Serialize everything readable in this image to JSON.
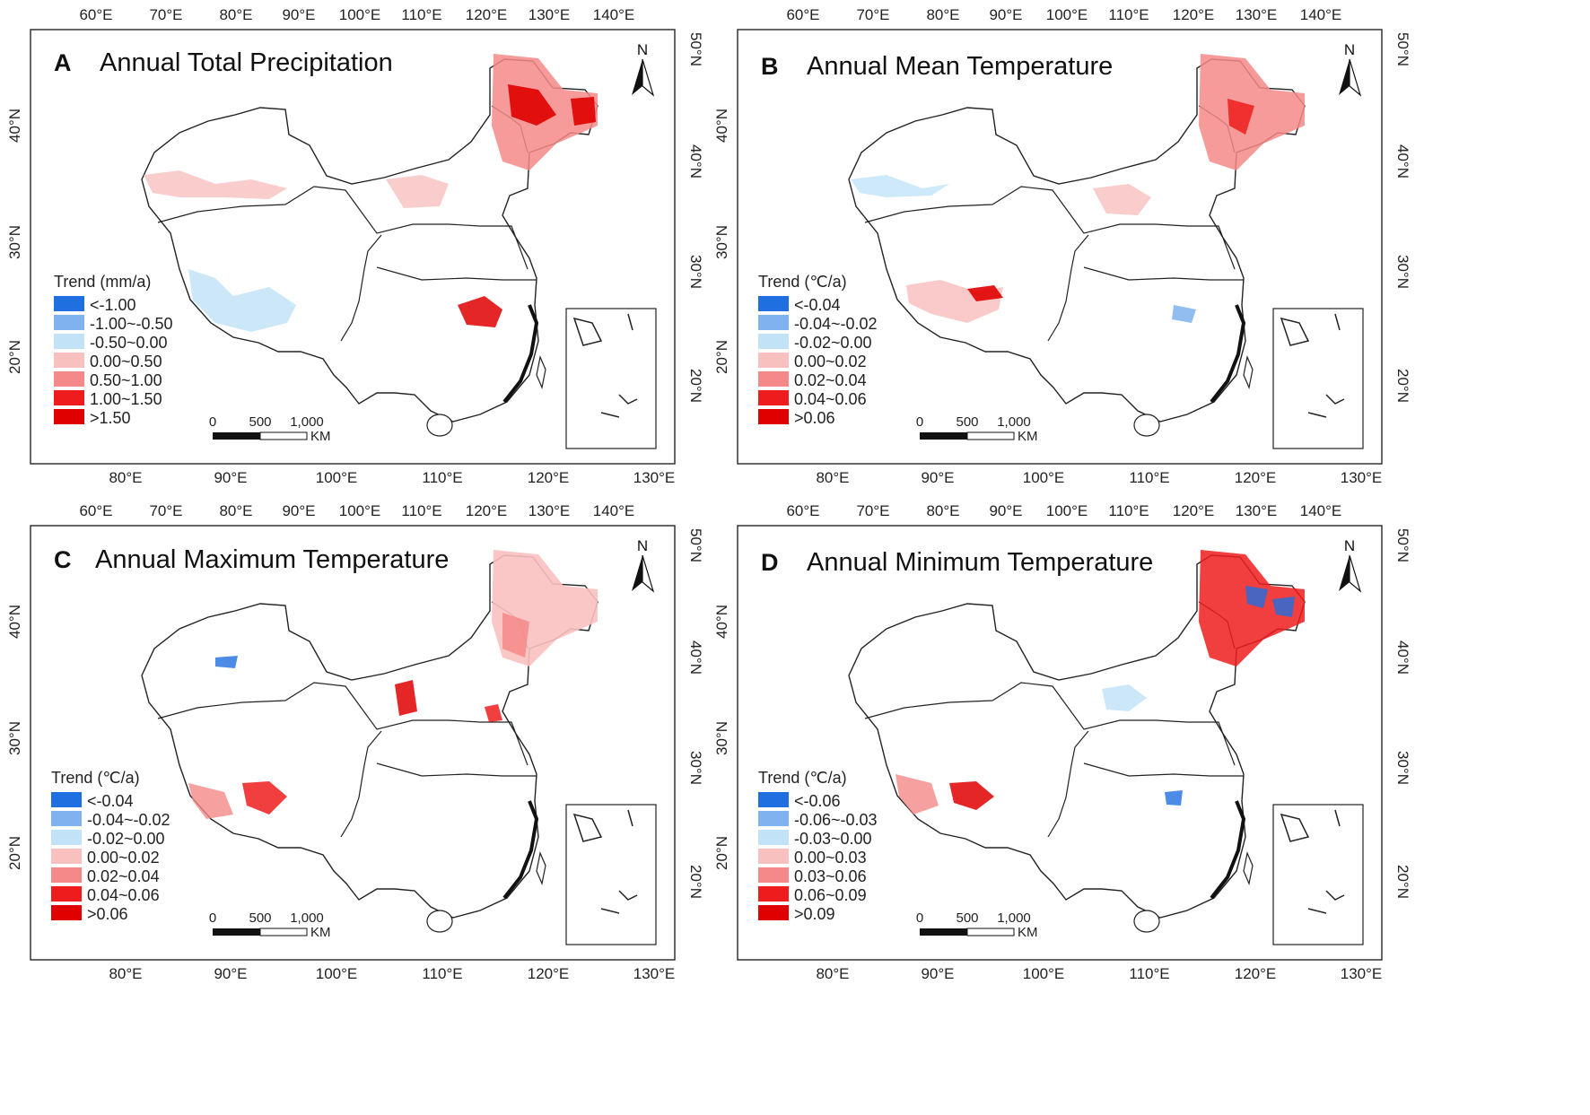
{
  "figure": {
    "top_lon_ticks": [
      "60°E",
      "70°E",
      "80°E",
      "90°E",
      "100°E",
      "110°E",
      "120°E",
      "130°E",
      "140°E"
    ],
    "bottom_lon_ticks": [
      "80°E",
      "90°E",
      "100°E",
      "110°E",
      "120°E",
      "130°E"
    ],
    "left_lat_ticks": [
      "40°N",
      "30°N",
      "20°N"
    ],
    "right_lat_ticks": [
      "50°N",
      "40°N",
      "30°N",
      "20°N"
    ],
    "north_label": "N",
    "scalebar": {
      "labels": [
        "0",
        "500",
        "1,000"
      ],
      "unit": "KM"
    }
  },
  "colors": {
    "class1": "#1f6fe0",
    "class2": "#7fb2ee",
    "class3": "#c2e3f7",
    "class4": "#f9c0c0",
    "class5": "#f58888",
    "class6": "#ee1c1c",
    "class7": "#e00000",
    "boundary": "#222222",
    "frame": "#333333"
  },
  "panels": [
    {
      "letter": "A",
      "title": "Annual Total Precipitation",
      "legend_title": "Trend (mm/a)",
      "legend_items": [
        "<-1.00",
        "-1.00~-0.50",
        "-0.50~0.00",
        "0.00~0.50",
        "0.50~1.00",
        "1.00~1.50",
        ">1.50"
      ]
    },
    {
      "letter": "B",
      "title": "Annual Mean Temperature",
      "legend_title": "Trend (℃/a)",
      "legend_items": [
        "<-0.04",
        "-0.04~-0.02",
        "-0.02~0.00",
        "0.00~0.02",
        "0.02~0.04",
        "0.04~0.06",
        ">0.06"
      ]
    },
    {
      "letter": "C",
      "title": "Annual Maximum Temperature",
      "legend_title": "Trend (℃/a)",
      "legend_items": [
        "<-0.04",
        "-0.04~-0.02",
        "-0.02~0.00",
        "0.00~0.02",
        "0.02~0.04",
        "0.04~0.06",
        ">0.06"
      ]
    },
    {
      "letter": "D",
      "title": "Annual Minimum Temperature",
      "legend_title": "Trend (℃/a)",
      "legend_items": [
        "<-0.06",
        "-0.06~-0.03",
        "-0.03~0.00",
        "0.00~0.03",
        "0.03~0.06",
        "0.06~0.09",
        ">0.09"
      ]
    }
  ]
}
